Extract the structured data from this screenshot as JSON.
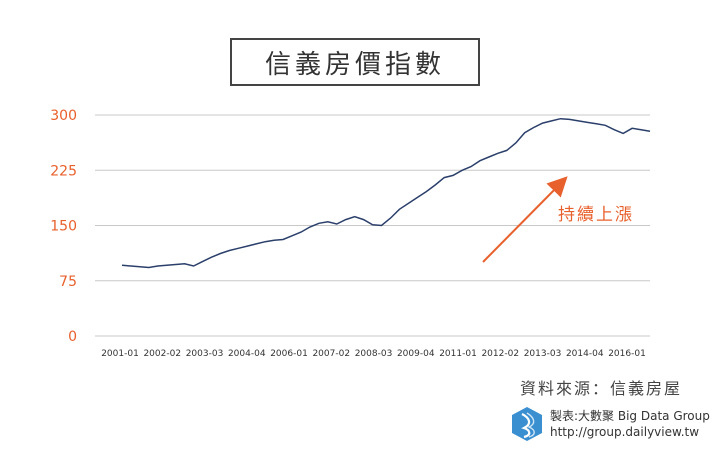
{
  "title": "信義房價指數",
  "source": "資料來源：信義房屋",
  "maker": {
    "line1": "製表:大數聚 Big Data Group",
    "line2": "http://group.dailyview.tw"
  },
  "colors": {
    "line": "#2b3f6b",
    "accent": "#e8602c",
    "grid": "#c8c8c8",
    "logo": "#3a8fd0"
  },
  "chart_data": {
    "type": "line",
    "title": "信義房價指數",
    "xlabel": "",
    "ylabel": "",
    "ylim": [
      0,
      300
    ],
    "yticks": [
      0,
      75,
      150,
      225,
      300
    ],
    "grid": true,
    "xticks": [
      "2001-01",
      "2002-02",
      "2003-03",
      "2004-04",
      "2006-01",
      "2007-02",
      "2008-03",
      "2009-04",
      "2011-01",
      "2012-02",
      "2013-03",
      "2014-04",
      "2016-01"
    ],
    "series": [
      {
        "values": [
          96,
          95,
          94,
          93,
          95,
          96,
          97,
          98,
          95,
          101,
          107,
          112,
          116,
          119,
          122,
          125,
          128,
          130,
          131,
          136,
          141,
          148,
          153,
          155,
          152,
          158,
          162,
          158,
          151,
          150,
          160,
          172,
          180,
          188,
          196,
          205,
          215,
          218,
          225,
          230,
          238,
          243,
          248,
          252,
          262,
          276,
          283,
          289,
          292,
          295,
          294,
          292,
          290,
          288,
          286,
          280,
          275,
          282,
          280,
          278
        ]
      }
    ],
    "annotation": {
      "text": "持續上漲"
    }
  }
}
